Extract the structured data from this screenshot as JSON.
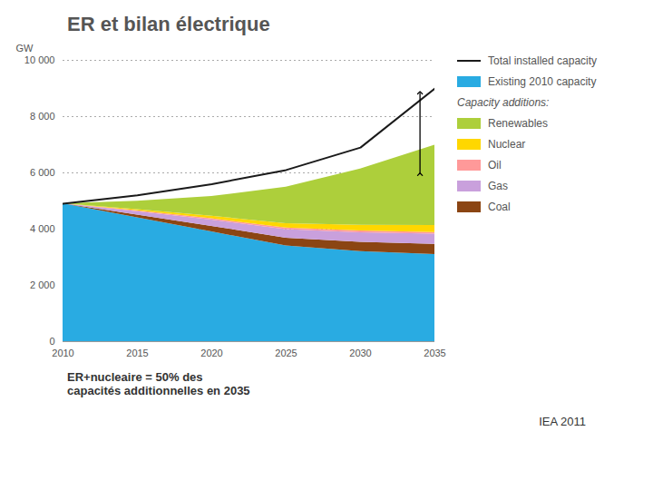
{
  "chart_data": {
    "type": "area",
    "stacked": true,
    "title": "ER et bilan électrique",
    "x": [
      2010,
      2015,
      2020,
      2025,
      2030,
      2035
    ],
    "xlim": [
      2010,
      2035
    ],
    "xticks": [
      2010,
      2015,
      2020,
      2025,
      2030,
      2035
    ],
    "ylabel": "GW",
    "ylim": [
      0,
      10000
    ],
    "yticks": [
      0,
      {
        "value": 2000,
        "label": "2 000"
      },
      {
        "value": 4000,
        "label": "4 000"
      },
      {
        "value": 6000,
        "label": "6 000"
      },
      {
        "value": 8000,
        "label": "8 000"
      },
      {
        "value": 10000,
        "label": "10 000"
      }
    ],
    "grid": true,
    "legend": "right",
    "legend_subheading": "Capacity additions:",
    "series": [
      {
        "name": "Total installed capacity",
        "type": "line",
        "color": "#1a1a1a",
        "values": [
          4900,
          5200,
          5600,
          6100,
          6900,
          9000
        ]
      },
      {
        "name": "Existing 2010 capacity",
        "color": "#29ABE2",
        "values": [
          4900,
          4400,
          3900,
          3400,
          3200,
          3100
        ]
      },
      {
        "name": "Coal",
        "color": "#8B4513",
        "values": [
          0,
          100,
          200,
          280,
          330,
          360
        ]
      },
      {
        "name": "Gas",
        "color": "#C9A0DC",
        "values": [
          0,
          120,
          220,
          300,
          340,
          360
        ]
      },
      {
        "name": "Oil",
        "color": "#FF9999",
        "values": [
          0,
          30,
          50,
          60,
          65,
          60
        ]
      },
      {
        "name": "Nuclear",
        "color": "#FFD700",
        "values": [
          0,
          40,
          90,
          150,
          200,
          250
        ]
      },
      {
        "name": "Renewables",
        "color": "#ADCF3B",
        "values": [
          0,
          300,
          700,
          1300,
          2000,
          2850
        ]
      }
    ],
    "arrow": {
      "x": 2034,
      "from": 5950,
      "to": 8850
    },
    "annotations": [
      {
        "text": "ER+nucleaire = 50% des\ncapacités additionnelles en 2035"
      },
      {
        "text": "IEA 2011"
      }
    ]
  }
}
